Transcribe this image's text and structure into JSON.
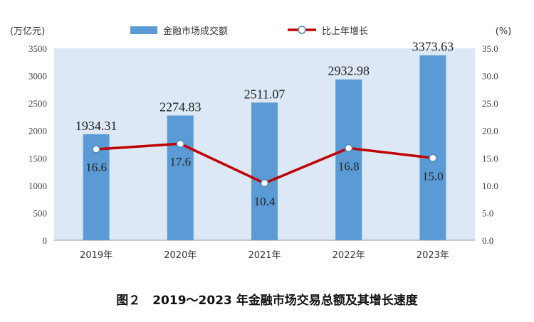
{
  "caption": "图２　2019～2023 年金融市场交易总额及其增长速度",
  "chart_data": {
    "type": "bar",
    "categories": [
      "2019年",
      "2020年",
      "2021年",
      "2022年",
      "2023年"
    ],
    "series": [
      {
        "name": "金融市场成交额",
        "type": "bar",
        "axis": "left",
        "values": [
          1934.31,
          2274.83,
          2511.07,
          2932.98,
          3373.63
        ],
        "labels": [
          "1934.31",
          "2274.83",
          "2511.07",
          "2932.98",
          "3373.63"
        ],
        "color": "#5b9bd5"
      },
      {
        "name": "比上年增长",
        "type": "line",
        "axis": "right",
        "values": [
          16.6,
          17.6,
          10.4,
          16.8,
          15.0
        ],
        "labels": [
          "16.6",
          "17.6",
          "10.4",
          "16.8",
          "15.0"
        ],
        "color": "#c00000"
      }
    ],
    "y_left": {
      "label": "(万亿元)",
      "min": 0,
      "max": 3500,
      "step": 500,
      "ticks": [
        "0",
        "500",
        "1000",
        "1500",
        "2000",
        "2500",
        "3000",
        "3500"
      ]
    },
    "y_right": {
      "label": "(%)",
      "min": 0,
      "max": 35,
      "step": 5,
      "ticks": [
        "0.0",
        "5.0",
        "10.0",
        "15.0",
        "20.0",
        "25.0",
        "30.0",
        "35.0"
      ]
    },
    "legend": "top-center",
    "grid": false,
    "plot_background": "#dce8f5"
  }
}
